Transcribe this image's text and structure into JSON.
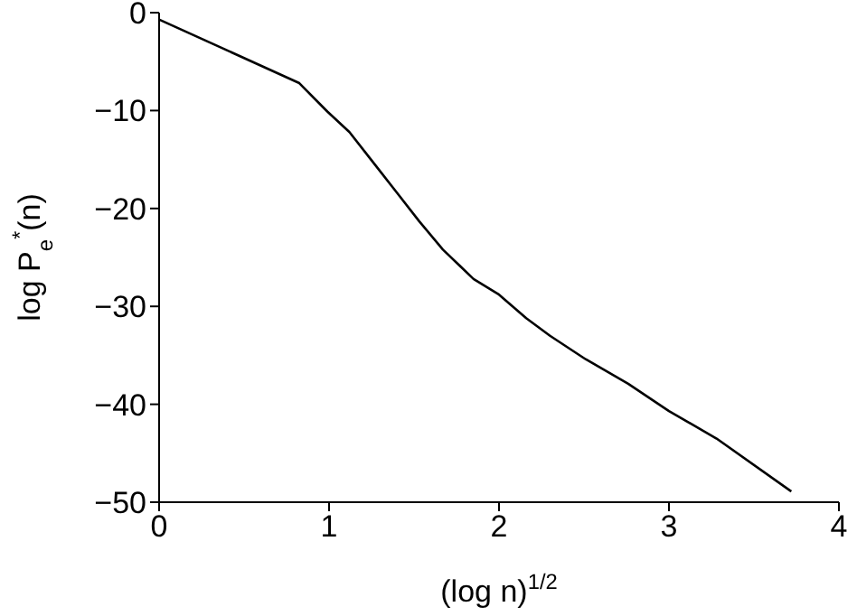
{
  "chart_data": {
    "type": "line",
    "xlabel": "(log n)$^{1/2}$",
    "ylabel": "log P$_{e}$$^{*}$(n)",
    "x": [
      0,
      0.825,
      0.99,
      1.12,
      1.26,
      1.4,
      1.53,
      1.67,
      1.85,
      2.0,
      2.16,
      2.3,
      2.51,
      2.76,
      3.0,
      3.28,
      3.72
    ],
    "series": [
      {
        "color": "#000000",
        "values": [
          -0.7,
          -7.2,
          -10.1,
          -12.2,
          -15.3,
          -18.4,
          -21.3,
          -24.2,
          -27.2,
          -28.8,
          -31.2,
          -33.0,
          -35.4,
          -37.9,
          -40.7,
          -43.5,
          -48.9
        ]
      }
    ],
    "xlim": [
      0,
      4
    ],
    "xticks": [
      0,
      1,
      2,
      3,
      4
    ],
    "ylim": [
      -50,
      0
    ],
    "yticks": [
      -50,
      -40,
      -30,
      -20,
      -10,
      0
    ],
    "grid": false,
    "legend": false,
    "marker": "none",
    "line_style": "solid"
  }
}
